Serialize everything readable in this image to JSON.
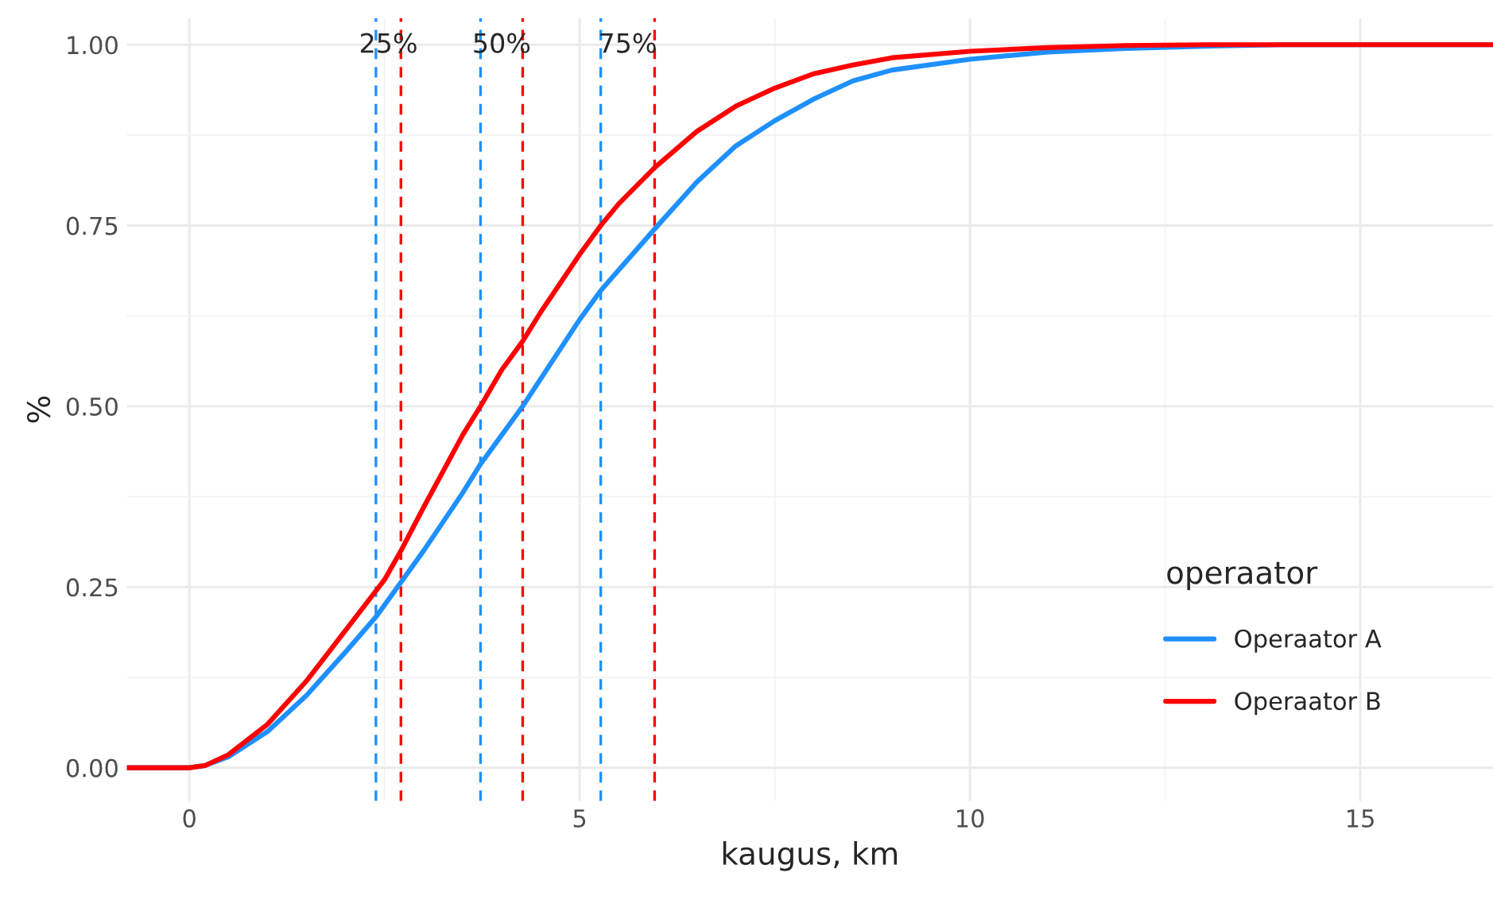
{
  "chart_data": {
    "type": "line",
    "xlabel": "kaugus, km",
    "ylabel": "%",
    "legend_title": "operaator",
    "legend": "bottom right",
    "grid": true,
    "line_style": "solid",
    "xlim": [
      -0.8,
      16.7
    ],
    "ylim": [
      -0.046,
      1.037
    ],
    "xticks": [
      0,
      5,
      10,
      15
    ],
    "yticks": [
      {
        "value": 0,
        "label": "0.00"
      },
      {
        "value": 0.25,
        "label": "0.25"
      },
      {
        "value": 0.5,
        "label": "0.50"
      },
      {
        "value": 0.75,
        "label": "0.75"
      },
      {
        "value": 1,
        "label": "1.00"
      }
    ],
    "series": [
      {
        "name": "Operaator A",
        "color": "#1e90ff",
        "x": [
          -0.8,
          0,
          0.2,
          0.5,
          1,
          1.5,
          2,
          2.4,
          3,
          3.5,
          3.73,
          4,
          4.27,
          5,
          5.27,
          6,
          6.5,
          7,
          7.5,
          8,
          8.5,
          9,
          10,
          11,
          12,
          13,
          14,
          16.7
        ],
        "values": [
          0,
          0,
          0.003,
          0.015,
          0.05,
          0.1,
          0.16,
          0.21,
          0.3,
          0.38,
          0.42,
          0.46,
          0.5,
          0.62,
          0.66,
          0.75,
          0.81,
          0.86,
          0.895,
          0.925,
          0.95,
          0.965,
          0.98,
          0.99,
          0.995,
          0.998,
          1,
          1
        ]
      },
      {
        "name": "Operaator B",
        "color": "#ff0000",
        "x": [
          -0.8,
          0,
          0.2,
          0.5,
          1,
          1.5,
          2,
          2.5,
          2.71,
          3,
          3.5,
          3.73,
          4,
          4.27,
          4.5,
          5,
          5.27,
          5.5,
          5.96,
          6.5,
          7,
          7.5,
          8,
          8.5,
          9,
          10,
          11,
          12,
          13,
          16.7
        ],
        "values": [
          0,
          0,
          0.003,
          0.018,
          0.06,
          0.12,
          0.19,
          0.26,
          0.3,
          0.36,
          0.46,
          0.5,
          0.55,
          0.59,
          0.63,
          0.71,
          0.75,
          0.78,
          0.83,
          0.88,
          0.915,
          0.94,
          0.96,
          0.972,
          0.982,
          0.991,
          0.996,
          0.999,
          1,
          1
        ]
      }
    ],
    "ref_lines": [
      {
        "axis": "x",
        "value": 2.39,
        "color": "#1e90ff",
        "line_style": "dashed"
      },
      {
        "axis": "x",
        "value": 2.71,
        "color": "#ff0000",
        "line_style": "dashed"
      },
      {
        "axis": "x",
        "value": 3.73,
        "color": "#1e90ff",
        "line_style": "dashed"
      },
      {
        "axis": "x",
        "value": 4.27,
        "color": "#ff0000",
        "line_style": "dashed"
      },
      {
        "axis": "x",
        "value": 5.27,
        "color": "#1e90ff",
        "line_style": "dashed"
      },
      {
        "axis": "x",
        "value": 5.96,
        "color": "#ff0000",
        "line_style": "dashed"
      }
    ],
    "annotations": [
      "25%",
      "50%",
      "75%"
    ]
  }
}
